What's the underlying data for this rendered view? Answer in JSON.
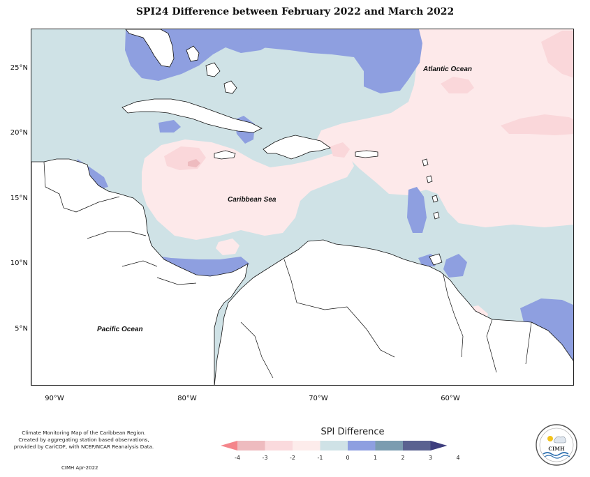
{
  "title": "SPI24 Difference between February 2022 and March 2022",
  "axes": {
    "latitude_ticks": [
      "25°N",
      "20°N",
      "15°N",
      "10°N",
      "5°N"
    ],
    "longitude_ticks": [
      "90°W",
      "80°W",
      "70°W",
      "60°W"
    ]
  },
  "labels": {
    "atlantic": "Atlantic Ocean",
    "caribbean": "Caribbean Sea",
    "pacific": "Pacific Ocean"
  },
  "legend": {
    "title": "SPI Difference",
    "ticks": [
      "-4",
      "-3",
      "-2",
      "-1",
      "0",
      "1",
      "2",
      "3",
      "4"
    ],
    "colors": [
      "#f4858b",
      "#eebbbf",
      "#fadadd",
      "#fdeceb",
      "#cfe2e6",
      "#8e9fe0",
      "#7b9cb0",
      "#5a6290",
      "#3e3e7e"
    ]
  },
  "credits": {
    "line1": "Climate Monitoring Map of the Caribbean Region.",
    "line2": "Created by aggregating station based observations,",
    "line3": "provided by CariCOF, with NCEP/NCAR Reanalysis Data.",
    "issued": "CIMH Apr-2022"
  },
  "logo": {
    "text": "CIMH"
  }
}
